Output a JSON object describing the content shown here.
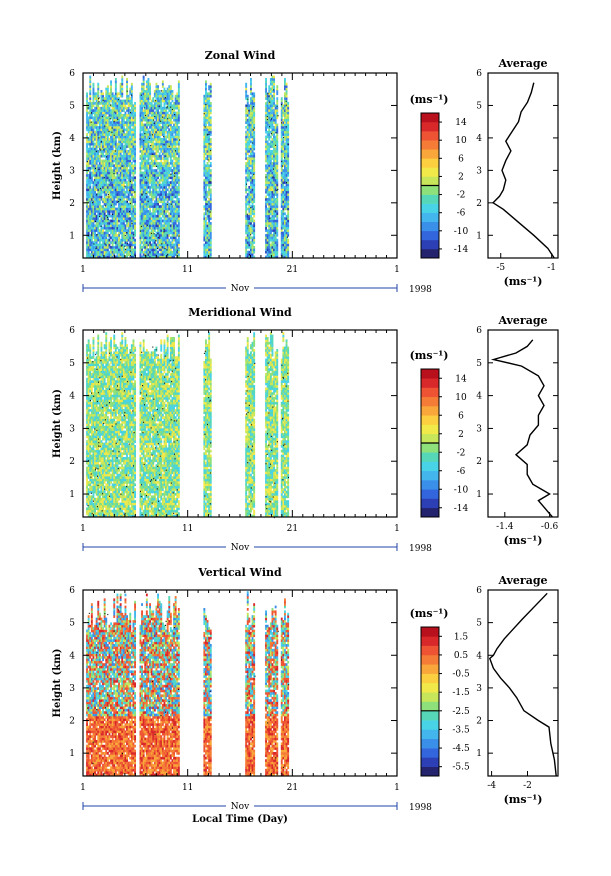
{
  "chart_data": [
    {
      "type": "heatmap",
      "title": "Zonal Wind",
      "ylabel": "Height (km)",
      "ylim": [
        0.3,
        6.0
      ],
      "yticks": [
        1,
        2,
        3,
        4,
        5,
        6
      ],
      "x_ticks": [
        "1",
        "11",
        "21",
        "1"
      ],
      "x_month": "Nov",
      "x_year": "1998",
      "colorbar": {
        "unit": "(ms⁻¹)",
        "ticks": [
          14,
          10,
          6,
          2,
          -2,
          -6,
          -10,
          -14
        ],
        "range": [
          -16,
          16
        ],
        "contour_level": 0
      },
      "data_days": [
        [
          0.3,
          5.0
        ],
        [
          5.4,
          9.2
        ],
        [
          11.5,
          12.2
        ],
        [
          15.5,
          16.4
        ],
        [
          17.4,
          18.6
        ],
        [
          18.9,
          19.6
        ]
      ],
      "mean_value": -4.0,
      "profile": {
        "title": "Average",
        "xlabel": "(ms⁻¹)",
        "x_ticks": [
          -5,
          -1
        ],
        "xlim": [
          -6,
          -0.5
        ],
        "ylim": [
          0.3,
          6.0
        ],
        "yticks": [
          1,
          2,
          3,
          4,
          5,
          6
        ],
        "height": [
          0.3,
          0.6,
          1.0,
          1.4,
          1.8,
          2.0,
          2.2,
          2.4,
          2.7,
          3.0,
          3.3,
          3.6,
          3.9,
          4.2,
          4.5,
          4.8,
          5.1,
          5.4,
          5.7
        ],
        "values": [
          -0.8,
          -1.3,
          -2.4,
          -3.6,
          -4.8,
          -5.6,
          -5.1,
          -4.8,
          -4.6,
          -4.9,
          -4.6,
          -4.2,
          -4.6,
          -4.1,
          -3.6,
          -3.4,
          -2.9,
          -2.6,
          -2.4
        ]
      }
    },
    {
      "type": "heatmap",
      "title": "Meridional Wind",
      "ylabel": "Height (km)",
      "ylim": [
        0.3,
        6.0
      ],
      "yticks": [
        1,
        2,
        3,
        4,
        5,
        6
      ],
      "x_ticks": [
        "1",
        "11",
        "21",
        "1"
      ],
      "x_month": "Nov",
      "x_year": "1998",
      "colorbar": {
        "unit": "(ms⁻¹)",
        "ticks": [
          14,
          10,
          6,
          2,
          -2,
          -6,
          -10,
          -14
        ],
        "range": [
          -16,
          16
        ],
        "contour_level": 0
      },
      "data_days": [
        [
          0.3,
          5.0
        ],
        [
          5.4,
          9.2
        ],
        [
          11.5,
          12.2
        ],
        [
          15.5,
          16.4
        ],
        [
          17.4,
          18.6
        ],
        [
          18.9,
          19.6
        ]
      ],
      "mean_value": -1.5,
      "profile": {
        "title": "Average",
        "xlabel": "(ms⁻¹)",
        "x_ticks": [
          -1.4,
          -0.6
        ],
        "xlim": [
          -1.7,
          -0.45
        ],
        "ylim": [
          0.3,
          6.0
        ],
        "yticks": [
          1,
          2,
          3,
          4,
          5,
          6
        ],
        "height": [
          0.3,
          0.5,
          0.8,
          1.0,
          1.3,
          1.6,
          1.9,
          2.2,
          2.5,
          2.8,
          3.1,
          3.4,
          3.7,
          4.0,
          4.3,
          4.6,
          4.9,
          5.1,
          5.3,
          5.5,
          5.7
        ],
        "values": [
          -0.55,
          -0.65,
          -0.8,
          -0.6,
          -0.9,
          -1.0,
          -1.0,
          -1.2,
          -1.0,
          -0.95,
          -0.8,
          -0.8,
          -0.7,
          -0.8,
          -0.7,
          -0.8,
          -1.1,
          -1.6,
          -1.2,
          -1.0,
          -0.9
        ]
      }
    },
    {
      "type": "heatmap",
      "title": "Vertical Wind",
      "ylabel": "Height (km)",
      "xlabel": "Local Time (Day)",
      "ylim": [
        0.3,
        6.0
      ],
      "yticks": [
        1,
        2,
        3,
        4,
        5,
        6
      ],
      "x_ticks": [
        "1",
        "11",
        "21",
        "1"
      ],
      "x_month": "Nov",
      "x_year": "1998",
      "colorbar": {
        "unit": "(ms⁻¹)",
        "ticks": [
          1.5,
          0.5,
          -0.5,
          -1.5,
          -2.5,
          -3.5,
          -4.5,
          -5.5
        ],
        "range": [
          -6,
          2
        ],
        "contour_level": -2.5
      },
      "data_days": [
        [
          0.3,
          5.0
        ],
        [
          5.4,
          9.2
        ],
        [
          11.5,
          12.2
        ],
        [
          15.5,
          16.4
        ],
        [
          17.4,
          18.6
        ],
        [
          18.9,
          19.6
        ]
      ],
      "mean_value": 0.3,
      "profile": {
        "title": "Average",
        "xlabel": "(ms⁻¹)",
        "x_ticks": [
          -4,
          -2
        ],
        "xlim": [
          -4.2,
          -0.3
        ],
        "ylim": [
          0.3,
          6.0
        ],
        "yticks": [
          1,
          2,
          3,
          4,
          5,
          6
        ],
        "height": [
          0.3,
          0.8,
          1.3,
          1.8,
          2.0,
          2.3,
          2.7,
          3.0,
          3.3,
          3.6,
          3.9,
          4.0,
          4.2,
          4.5,
          4.8,
          5.1,
          5.5,
          5.9
        ],
        "values": [
          -0.4,
          -0.5,
          -0.7,
          -0.8,
          -1.4,
          -2.2,
          -2.6,
          -3.0,
          -3.5,
          -3.9,
          -4.1,
          -3.9,
          -3.7,
          -3.3,
          -2.8,
          -2.3,
          -1.6,
          -0.9
        ]
      }
    }
  ]
}
